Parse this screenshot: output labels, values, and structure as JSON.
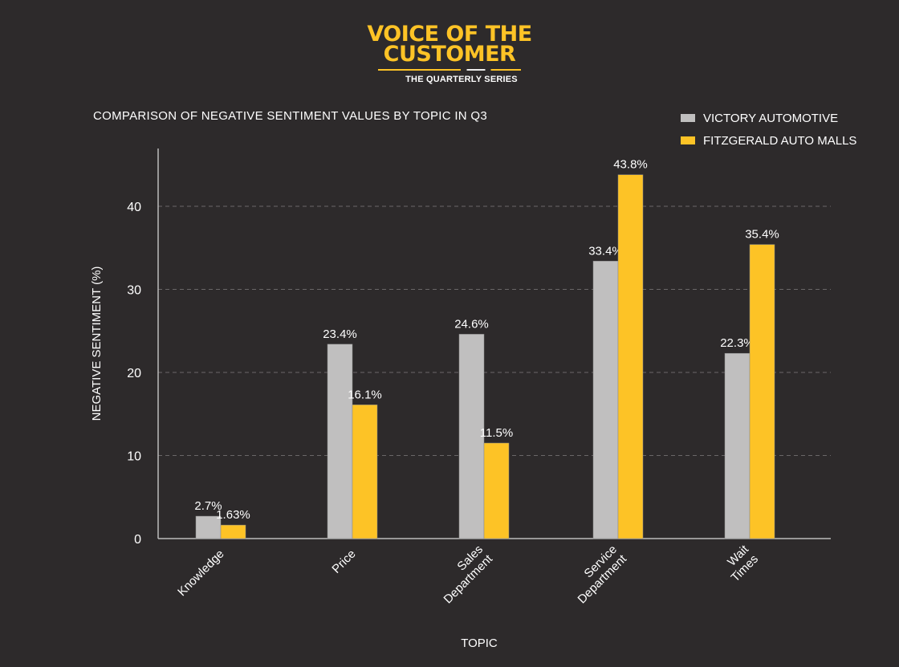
{
  "logo": {
    "line1": "VOICE OF THE",
    "line2": "CUSTOMER",
    "subtitle": "THE QUARTERLY SERIES"
  },
  "chart_data": {
    "type": "bar",
    "title": "COMPARISON OF NEGATIVE SENTIMENT VALUES BY TOPIC IN Q3",
    "xlabel": "TOPIC",
    "ylabel": "NEGATIVE SENTIMENT (%)",
    "ylim": [
      0,
      45
    ],
    "yticks": [
      0,
      10,
      20,
      30,
      40
    ],
    "grid": "horizontal dashed",
    "legend": "top-right",
    "categories": [
      [
        "Knowledge"
      ],
      [
        "Price"
      ],
      [
        "Sales",
        "Department"
      ],
      [
        "Service",
        "Department"
      ],
      [
        "Wait",
        "Times"
      ]
    ],
    "series": [
      {
        "name": "VICTORY AUTOMOTIVE",
        "color": "#c0bfbf",
        "values": [
          2.7,
          23.4,
          24.6,
          33.4,
          22.3
        ],
        "labels": [
          "2.7%",
          "23.4%",
          "24.6%",
          "33.4%",
          "22.3%"
        ]
      },
      {
        "name": "FITZGERALD AUTO MALLS",
        "color": "#fdc326",
        "values": [
          1.63,
          16.1,
          11.5,
          43.8,
          35.4
        ],
        "labels": [
          "1.63%",
          "16.1%",
          "11.5%",
          "43.8%",
          "35.4%"
        ]
      }
    ]
  }
}
